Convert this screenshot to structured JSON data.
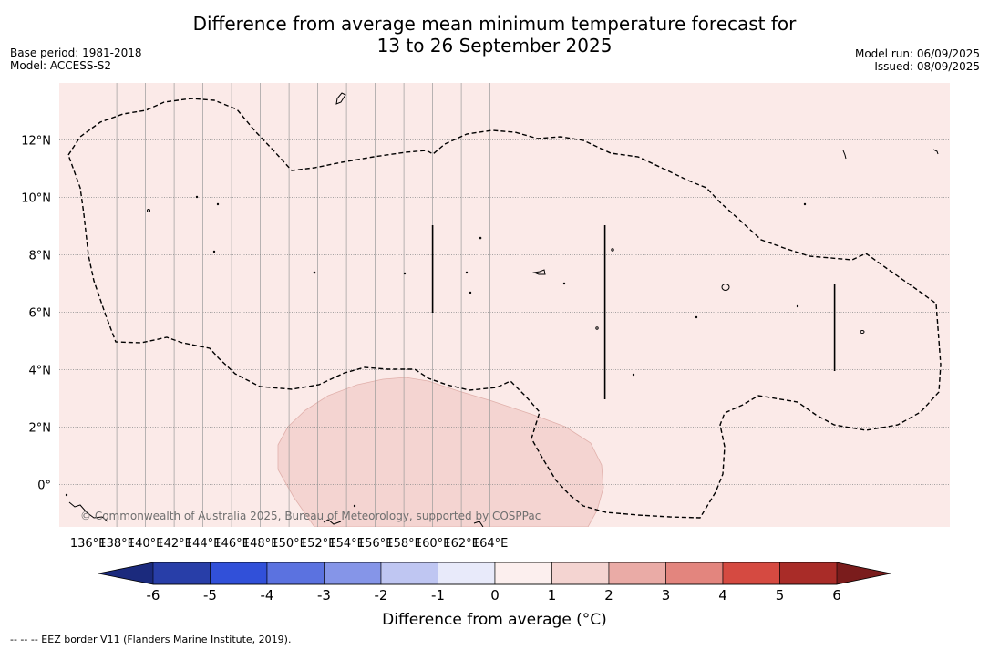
{
  "header": {
    "title_line1": "Difference from average mean minimum temperature forecast for",
    "title_line2": "13 to 26 September 2025",
    "base_period": "Base period: 1981-2018",
    "model": "Model: ACCESS-S2",
    "model_run": "Model run: 06/09/2025",
    "issued": "Issued: 08/09/2025"
  },
  "map": {
    "background_color": "#fbeae8",
    "anomaly_region_color": "#f4d4d1",
    "copyright": "© Commonwealth of Australia 2025, Bureau of Meteorology, supported by COSPPac",
    "lon_ticks": [
      "136°E",
      "138°E",
      "140°E",
      "142°E",
      "144°E",
      "146°E",
      "148°E",
      "150°E",
      "152°E",
      "154°E",
      "156°E",
      "158°E",
      "160°E",
      "162°E",
      "164°E"
    ],
    "lat_ticks": [
      "12°N",
      "10°N",
      "8°N",
      "6°N",
      "4°N",
      "2°N",
      "0°"
    ]
  },
  "colorbar": {
    "tick_labels": [
      "-6",
      "-5",
      "-4",
      "-3",
      "-2",
      "-1",
      "0",
      "1",
      "2",
      "3",
      "4",
      "5",
      "6"
    ],
    "colors": [
      "#283ea8",
      "#3150d9",
      "#5b72e0",
      "#8595e8",
      "#bfc6f2",
      "#e8eafa",
      "#fcefee",
      "#f4d4d1",
      "#eaaba6",
      "#e3857e",
      "#d54a41",
      "#a92c28"
    ],
    "under_color": "#1b2a7d",
    "over_color": "#7a1c1c",
    "label": "Difference from average (°C)"
  },
  "footnote": "--  --  -- EEZ border V11 (Flanders Marine Institute, 2019)."
}
